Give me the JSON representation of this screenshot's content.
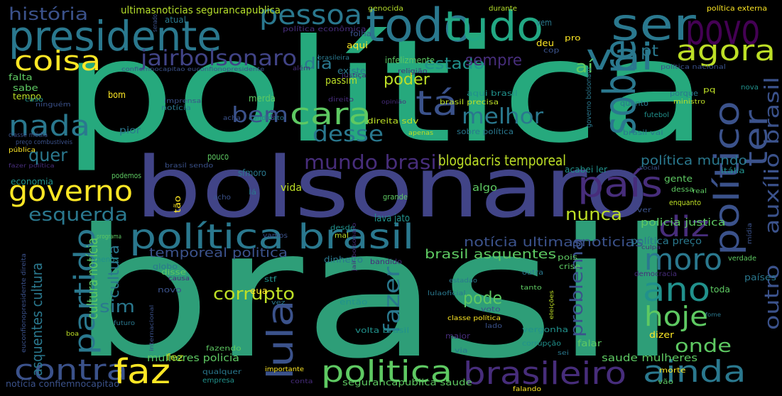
{
  "words": [
    {
      "text": "brasil",
      "color": "#2e9e78"
    },
    {
      "text": "política",
      "color": "#26a97d"
    },
    {
      "text": "bolsonaro",
      "color": "#414487"
    },
    {
      "text": "presidente",
      "color": "#2a788e"
    },
    {
      "text": "todo",
      "color": "#2a788e"
    },
    {
      "text": "tudo",
      "color": "#22a884"
    },
    {
      "text": "ser",
      "color": "#2a788e"
    },
    {
      "text": "povo",
      "color": "#440154"
    },
    {
      "text": "pessoa",
      "color": "#2a788e"
    },
    {
      "text": "vai",
      "color": "#2a788e"
    },
    {
      "text": "coisa",
      "color": "#fde725"
    },
    {
      "text": "agora",
      "color": "#bddf26"
    },
    {
      "text": "jairbolsonaro",
      "color": "#414487"
    },
    {
      "text": "história",
      "color": "#3b528b"
    },
    {
      "text": "ultimasnoticias segurancapublica",
      "color": "#b5de2b"
    },
    {
      "text": "genocida",
      "color": "#b5de2b"
    },
    {
      "text": "durante",
      "color": "#b5de2b"
    },
    {
      "text": "política externa",
      "color": "#fde725"
    },
    {
      "text": "nada",
      "color": "#2a788e"
    },
    {
      "text": "sobre",
      "color": "#2a788e"
    },
    {
      "text": "tá",
      "color": "#3b528b"
    },
    {
      "text": "cara",
      "color": "#5ec962"
    },
    {
      "text": "melhor",
      "color": "#2a788e"
    },
    {
      "text": "bem",
      "color": "#3b528b"
    },
    {
      "text": "desse",
      "color": "#2a788e"
    },
    {
      "text": "ter",
      "color": "#3b528b"
    },
    {
      "text": "auxílio brasil",
      "color": "#3b528b"
    },
    {
      "text": "político",
      "color": "#3b528b"
    },
    {
      "text": "governo",
      "color": "#fde725"
    },
    {
      "text": "país",
      "color": "#472d7b"
    },
    {
      "text": "política brasil",
      "color": "#2a788e"
    },
    {
      "text": "diz",
      "color": "#472d7b"
    },
    {
      "text": "moro",
      "color": "#2a788e"
    },
    {
      "text": "ano",
      "color": "#21918c"
    },
    {
      "text": "hoje",
      "color": "#5ec962"
    },
    {
      "text": "lula",
      "color": "#3b528b"
    },
    {
      "text": "partido",
      "color": "#2a788e"
    },
    {
      "text": "contra",
      "color": "#3b528b"
    },
    {
      "text": "faz",
      "color": "#fde725"
    },
    {
      "text": "politica",
      "color": "#5ec962"
    },
    {
      "text": "brasileiro",
      "color": "#472d7b"
    },
    {
      "text": "ainda",
      "color": "#2a788e"
    },
    {
      "text": "fazer",
      "color": "#2a788e"
    },
    {
      "text": "esquerda",
      "color": "#2a788e"
    },
    {
      "text": "quer",
      "color": "#2a788e"
    },
    {
      "text": "mundo brasil",
      "color": "#472d7b"
    },
    {
      "text": "blogdacris temporeal",
      "color": "#bddf26"
    },
    {
      "text": "nunca",
      "color": "#bddf26"
    },
    {
      "text": "corrupto",
      "color": "#bddf26"
    },
    {
      "text": "sim",
      "color": "#2a788e"
    },
    {
      "text": "pode",
      "color": "#5ec962"
    },
    {
      "text": "outro",
      "color": "#3b528b"
    },
    {
      "text": "onde",
      "color": "#5ec962"
    },
    {
      "text": "problema",
      "color": "#3b528b"
    },
    {
      "text": "poder",
      "color": "#bddf26"
    },
    {
      "text": "estado",
      "color": "#21918c"
    },
    {
      "text": "dia",
      "color": "#2a788e"
    },
    {
      "text": "sempre",
      "color": "#472d7b"
    },
    {
      "text": "aí",
      "color": "#5ec962"
    },
    {
      "text": "pt",
      "color": "#2a788e"
    },
    {
      "text": "cultura",
      "color": "#2a788e"
    },
    {
      "text": "asquentes cultura",
      "color": "#2a788e"
    },
    {
      "text": "cultura notícia",
      "color": "#5ec962"
    },
    {
      "text": "temporeal politica",
      "color": "#3b528b"
    },
    {
      "text": "brasil asquentes",
      "color": "#5ec962"
    },
    {
      "text": "notícia ultimasnoticias",
      "color": "#3b528b"
    },
    {
      "text": "política mundo",
      "color": "#2a788e"
    },
    {
      "text": "policia justica",
      "color": "#5ec962"
    },
    {
      "text": "política preço",
      "color": "#2a788e"
    },
    {
      "text": "saude mulheres",
      "color": "#5ec962"
    },
    {
      "text": "mulheres policia",
      "color": "#5ec962"
    },
    {
      "text": "notícia confiemnocapitao",
      "color": "#3b528b"
    },
    {
      "text": "segurancapublica saude",
      "color": "#5ec962"
    },
    {
      "text": "economia",
      "color": "#21918c"
    },
    {
      "text": "podemos",
      "color": "#5ec962"
    },
    {
      "text": "fez",
      "color": "#bddf26"
    },
    {
      "text": "pouco",
      "color": "#5ec962"
    },
    {
      "text": "sfmoro",
      "color": "#2a788e"
    },
    {
      "text": "vida",
      "color": "#bddf26"
    },
    {
      "text": "lava jato",
      "color": "#21918c"
    },
    {
      "text": "algo",
      "color": "#5ec962"
    },
    {
      "text": "acabei ler",
      "color": "#21918c"
    },
    {
      "text": "gente",
      "color": "#5ec962"
    },
    {
      "text": "dessa",
      "color": "#5ec962"
    },
    {
      "text": "real",
      "color": "#5ec962"
    },
    {
      "text": "enquanto",
      "color": "#bddf26"
    },
    {
      "text": "ver",
      "color": "#3b528b"
    },
    {
      "text": "itália",
      "color": "#21918c"
    },
    {
      "text": "social",
      "color": "#3b528b"
    },
    {
      "text": "bom",
      "color": "#fde725"
    },
    {
      "text": "merda",
      "color": "#5ec962"
    },
    {
      "text": "pior",
      "color": "#2a788e"
    },
    {
      "text": "passim",
      "color": "#bddf26"
    },
    {
      "text": "existe",
      "color": "#2a788e"
    },
    {
      "text": "infelizmente",
      "color": "#5ec962"
    },
    {
      "text": "aqui",
      "color": "#fde725"
    },
    {
      "text": "deu",
      "color": "#fde725"
    },
    {
      "text": "vem",
      "color": "#2a788e"
    },
    {
      "text": "pro",
      "color": "#fde725"
    },
    {
      "text": "cop",
      "color": "#3b528b"
    },
    {
      "text": "atual",
      "color": "#2a788e"
    },
    {
      "text": "folha",
      "color": "#3b528b"
    },
    {
      "text": "política econômica",
      "color": "#472d7b"
    },
    {
      "text": "confiemnocapitao euconfionopresidente",
      "color": "#3b528b"
    },
    {
      "text": "falta",
      "color": "#5ec962"
    },
    {
      "text": "sabe",
      "color": "#5ec962"
    },
    {
      "text": "tempo",
      "color": "#bddf26"
    },
    {
      "text": "caso",
      "color": "#21918c"
    },
    {
      "text": "ninguém",
      "color": "#3b528b"
    },
    {
      "text": "classe média",
      "color": "#3b528b"
    },
    {
      "text": "preço combustíveis",
      "color": "#3b528b"
    },
    {
      "text": "pública",
      "color": "#fde725"
    },
    {
      "text": "fazer política",
      "color": "#472d7b"
    },
    {
      "text": "imprensa",
      "color": "#3b528b"
    },
    {
      "text": "notícia",
      "color": "#2a788e"
    },
    {
      "text": "acha",
      "color": "#3b528b"
    },
    {
      "text": "candidato",
      "color": "#2a788e"
    },
    {
      "text": "direita sdv",
      "color": "#bddf26"
    },
    {
      "text": "apenas",
      "color": "#bddf26"
    },
    {
      "text": "sobre política",
      "color": "#2a788e"
    },
    {
      "text": "brasil precisa",
      "color": "#bddf26"
    },
    {
      "text": "aqui brasil",
      "color": "#21918c"
    },
    {
      "text": "quanto",
      "color": "#2a788e"
    },
    {
      "text": "governo bolsonaro",
      "color": "#2a788e"
    },
    {
      "text": "porque",
      "color": "#2a788e"
    },
    {
      "text": "pq",
      "color": "#bddf26"
    },
    {
      "text": "ministro",
      "color": "#bddf26"
    },
    {
      "text": "nova",
      "color": "#21918c"
    },
    {
      "text": "futebol",
      "color": "#21918c"
    },
    {
      "text": "brasil vai",
      "color": "#2a788e"
    },
    {
      "text": "política nacional",
      "color": "#3b528b"
    },
    {
      "text": "além",
      "color": "#472d7b"
    },
    {
      "text": "justiça",
      "color": "#472d7b"
    },
    {
      "text": "religião",
      "color": "#472d7b"
    },
    {
      "text": "brasileira",
      "color": "#2a788e"
    },
    {
      "text": "direito",
      "color": "#472d7b"
    },
    {
      "text": "opinião",
      "color": "#472d7b"
    },
    {
      "text": "senado",
      "color": "#3b528b"
    },
    {
      "text": "lei",
      "color": "#472d7b"
    },
    {
      "text": "brasil sendo",
      "color": "#3b528b"
    },
    {
      "text": "acho",
      "color": "#3b528b"
    },
    {
      "text": "tão",
      "color": "#fde725"
    },
    {
      "text": "lá",
      "color": "#2a788e"
    },
    {
      "text": "vamos",
      "color": "#3b528b"
    },
    {
      "text": "desde",
      "color": "#21918c"
    },
    {
      "text": "mal",
      "color": "#bddf26"
    },
    {
      "text": "programa",
      "color": "#5ec962"
    },
    {
      "text": "menos",
      "color": "#21918c"
    },
    {
      "text": "globo",
      "color": "#2a788e"
    },
    {
      "text": "disse",
      "color": "#5ec962"
    },
    {
      "text": "causa",
      "color": "#472d7b"
    },
    {
      "text": "novo",
      "color": "#3b528b"
    },
    {
      "text": "dinheiro",
      "color": "#2a788e"
    },
    {
      "text": "bandido",
      "color": "#472d7b"
    },
    {
      "text": "stf",
      "color": "#21918c"
    },
    {
      "text": "eua",
      "color": "#fde725"
    },
    {
      "text": "vez",
      "color": "#2a788e"
    },
    {
      "text": "então",
      "color": "#21918c"
    },
    {
      "text": "jair bolsonaro",
      "color": "#472d7b"
    },
    {
      "text": "estadao",
      "color": "#2a788e"
    },
    {
      "text": "tanto",
      "color": "#5ec962"
    },
    {
      "text": "lulaoficial",
      "color": "#2a788e"
    },
    {
      "text": "voto",
      "color": "#3b528b"
    },
    {
      "text": "classe política",
      "color": "#fde725"
    },
    {
      "text": "lado",
      "color": "#3b528b"
    },
    {
      "text": "vergonha",
      "color": "#21918c"
    },
    {
      "text": "eleições",
      "color": "#bddf26"
    },
    {
      "text": "dizer",
      "color": "#fde725"
    },
    {
      "text": "maior",
      "color": "#472d7b"
    },
    {
      "text": "corrupção",
      "color": "#21918c"
    },
    {
      "text": "falar",
      "color": "#5ec962"
    },
    {
      "text": "volta brasil",
      "color": "#21918c"
    },
    {
      "text": "via",
      "color": "#2a788e"
    },
    {
      "text": "sei",
      "color": "#2a788e"
    },
    {
      "text": "morte",
      "color": "#fde725"
    },
    {
      "text": "vão",
      "color": "#5ec962"
    },
    {
      "text": "falando",
      "color": "#fde725"
    },
    {
      "text": "conta",
      "color": "#472d7b"
    },
    {
      "text": "importante",
      "color": "#fde725"
    },
    {
      "text": "qualquer",
      "color": "#2a788e"
    },
    {
      "text": "empresa",
      "color": "#21918c"
    },
    {
      "text": "fazendo",
      "color": "#5ec962"
    },
    {
      "text": "futuro",
      "color": "#2a788e"
    },
    {
      "text": "internacional",
      "color": "#3b528b"
    },
    {
      "text": "euconfionopresidente direita",
      "color": "#3b528b"
    },
    {
      "text": "boa",
      "color": "#bddf26"
    },
    {
      "text": "crise",
      "color": "#5ec962"
    },
    {
      "text": "pois",
      "color": "#5ec962"
    },
    {
      "text": "democracia",
      "color": "#472d7b"
    },
    {
      "text": "países",
      "color": "#2a788e"
    },
    {
      "text": "verdade",
      "color": "#5ec962"
    },
    {
      "text": "mídia",
      "color": "#3b528b"
    },
    {
      "text": "culpa",
      "color": "#472d7b"
    },
    {
      "text": "outra",
      "color": "#2a788e"
    },
    {
      "text": "toda",
      "color": "#5ec962"
    },
    {
      "text": "fome",
      "color": "#2a788e"
    },
    {
      "text": "grande",
      "color": "#5ec962"
    }
  ]
}
